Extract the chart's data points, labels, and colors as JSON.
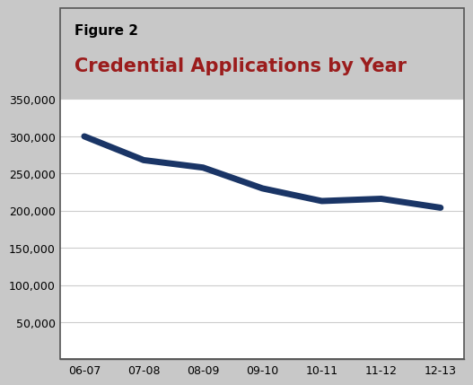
{
  "figure_label": "Figure 2",
  "title": "Credential Applications by Year",
  "title_color": "#9b1c1c",
  "figure_label_color": "#000000",
  "x_labels": [
    "06-07",
    "07-08",
    "08-09",
    "09-10",
    "10-11",
    "11-12",
    "12-13"
  ],
  "y_values": [
    300000,
    268000,
    258000,
    230000,
    213000,
    216000,
    204000
  ],
  "line_color": "#1a3566",
  "line_width": 5,
  "ylim": [
    0,
    350000
  ],
  "yticks": [
    0,
    50000,
    100000,
    150000,
    200000,
    250000,
    300000,
    350000
  ],
  "grid_color": "#cccccc",
  "chart_bg": "#ffffff",
  "outer_bg": "#c8c8c8",
  "header_bg": "#ffffff",
  "separator_color": "#1a1a1a",
  "border_color": "#555555",
  "figure_label_fontsize": 11,
  "title_fontsize": 15
}
